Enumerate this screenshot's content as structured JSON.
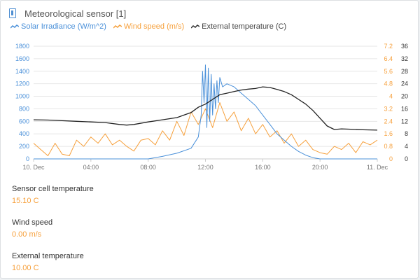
{
  "title": "Meteorological sensor [1]",
  "icon": "device-icon",
  "colors": {
    "irradiance": "#4a90d9",
    "wind": "#f6a03c",
    "temperature": "#222222",
    "text": "#555555"
  },
  "legend": [
    {
      "label": "Solar Irradiance (W/m^2)",
      "color": "#4a90d9"
    },
    {
      "label": "Wind speed (m/s)",
      "color": "#f6a03c"
    },
    {
      "label": "External temperature (C)",
      "color": "#444444"
    }
  ],
  "metrics": [
    {
      "label": "Sensor cell temperature",
      "value": "15.10 C"
    },
    {
      "label": "Wind speed",
      "value": "0.00 m/s"
    },
    {
      "label": "External temperature",
      "value": "10.00 C"
    }
  ],
  "chart_data": {
    "type": "line",
    "x_ticks": [
      "10. Dec",
      "04:00",
      "08:00",
      "12:00",
      "16:00",
      "20:00",
      "11. Dec"
    ],
    "x_range_hours": [
      0,
      24
    ],
    "y_left": {
      "ticks": [
        "0",
        "200",
        "400",
        "600",
        "800",
        "1000",
        "1200",
        "1400",
        "1600",
        "1800"
      ],
      "range": [
        0,
        1800
      ]
    },
    "y_right_wind": {
      "ticks": [
        "0",
        "0.8",
        "1.6",
        "2.4",
        "3.2",
        "4",
        "4.8",
        "5.6",
        "6.4",
        "7.2"
      ],
      "range": [
        0,
        7.2
      ]
    },
    "y_right_temp": {
      "ticks": [
        "0",
        "4",
        "8",
        "12",
        "16",
        "20",
        "24",
        "28",
        "32",
        "36"
      ],
      "range": [
        0,
        36
      ]
    },
    "grid": true,
    "series": [
      {
        "name": "Solar Irradiance (W/m^2)",
        "axis": "left",
        "color": "#4a90d9",
        "x": [
          0,
          8,
          9,
          10,
          11,
          11.5,
          11.7,
          11.8,
          11.9,
          12,
          12.1,
          12.2,
          12.3,
          12.4,
          12.5,
          12.6,
          12.7,
          12.8,
          12.9,
          13,
          13.2,
          13.5,
          14,
          14.5,
          15,
          15.5,
          16,
          16.5,
          17,
          17.5,
          18,
          18.5,
          19,
          19.5,
          20,
          24
        ],
        "y": [
          0,
          0,
          40,
          90,
          170,
          350,
          700,
          1400,
          900,
          1500,
          500,
          1450,
          600,
          1350,
          700,
          1200,
          800,
          1250,
          900,
          1300,
          1150,
          1200,
          1150,
          1050,
          950,
          850,
          700,
          550,
          400,
          300,
          200,
          120,
          60,
          20,
          0,
          0
        ]
      },
      {
        "name": "Wind speed (m/s)",
        "axis": "right_wind",
        "color": "#f6a03c",
        "x": [
          0,
          0.5,
          1,
          1.5,
          2,
          2.5,
          3,
          3.5,
          4,
          4.5,
          5,
          5.5,
          6,
          6.5,
          7,
          7.5,
          8,
          8.5,
          9,
          9.5,
          10,
          10.5,
          11,
          11.5,
          12,
          12.5,
          13,
          13.5,
          14,
          14.5,
          15,
          15.5,
          16,
          16.5,
          17,
          17.5,
          18,
          18.5,
          19,
          19.5,
          20,
          20.5,
          21,
          21.5,
          22,
          22.5,
          23,
          23.5,
          24
        ],
        "y": [
          1.0,
          0.6,
          0.2,
          1.0,
          0.3,
          0.2,
          1.2,
          0.8,
          1.4,
          1.0,
          1.6,
          0.9,
          1.2,
          0.8,
          0.5,
          1.2,
          1.3,
          0.9,
          1.8,
          1.2,
          2.4,
          1.5,
          3.0,
          2.2,
          3.2,
          2.0,
          3.6,
          2.4,
          3.0,
          1.8,
          2.6,
          1.6,
          2.2,
          1.4,
          1.8,
          1.0,
          1.6,
          0.8,
          1.2,
          0.6,
          0.4,
          0.3,
          0.8,
          0.6,
          1.0,
          0.4,
          1.1,
          0.9,
          1.2
        ]
      },
      {
        "name": "External temperature (C)",
        "axis": "right_temp",
        "color": "#222222",
        "x": [
          0,
          1,
          2,
          3,
          4,
          5,
          6,
          6.5,
          7,
          8,
          9,
          10,
          10.5,
          11,
          11.5,
          12,
          12.5,
          13,
          13.5,
          14,
          14.5,
          15,
          15.5,
          16,
          16.5,
          17,
          17.5,
          18,
          18.5,
          19,
          19.5,
          20,
          20.5,
          21,
          21.5,
          22,
          23,
          24
        ],
        "y": [
          12.5,
          12.4,
          12.2,
          12.0,
          11.8,
          11.6,
          11.0,
          10.8,
          11.0,
          11.8,
          12.5,
          13.2,
          14,
          14.8,
          16.5,
          17.5,
          19.0,
          20.5,
          21.0,
          21.5,
          22.0,
          22.3,
          22.5,
          23.0,
          22.8,
          22.2,
          21.5,
          20.5,
          19.0,
          17.5,
          15.5,
          13.0,
          10.5,
          9.4,
          9.6,
          9.5,
          9.3,
          9.2
        ]
      }
    ]
  }
}
